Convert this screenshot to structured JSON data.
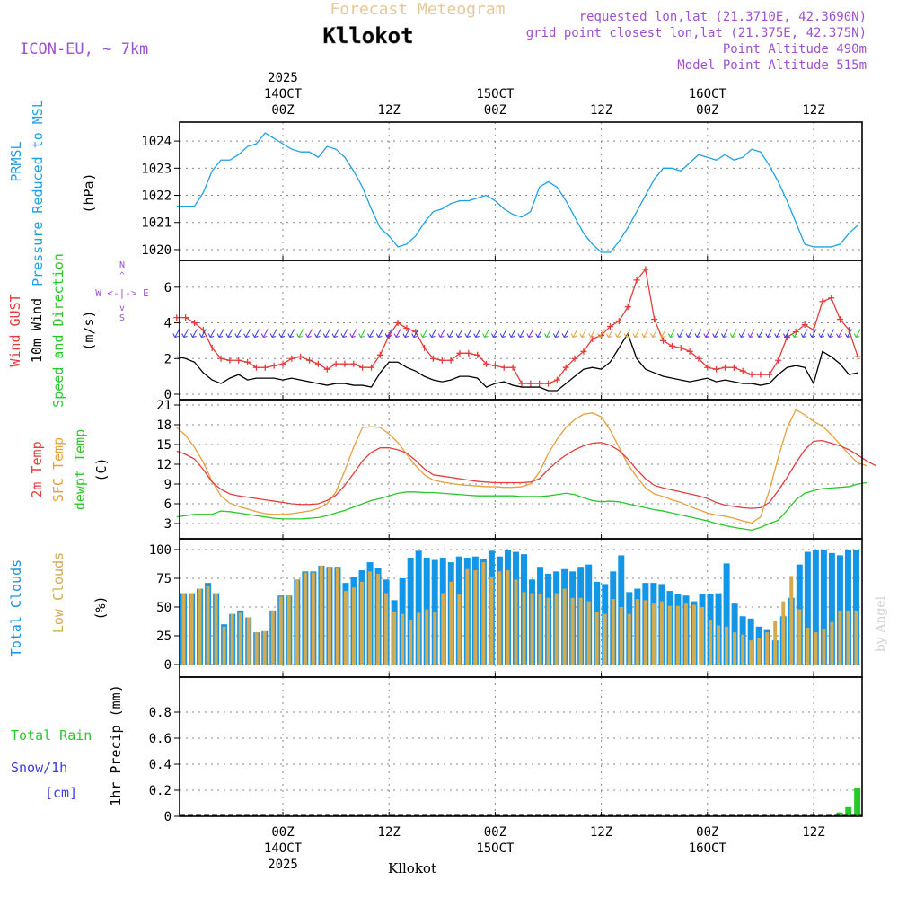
{
  "header": {
    "product": "Forecast Meteogram",
    "model": "ICON-EU, ~ 7km",
    "location": "Kllokot",
    "requested": "requested lon,lat (21.3710E, 42.3690N)",
    "grid_point": "grid point closest lon,lat (21.375E, 42.375N)",
    "point_alt": "Point Altitude 490m",
    "model_alt": "Model Point Altitude 515m",
    "credit": "by Angel",
    "footer_location": "Kllokot"
  },
  "time_axis": {
    "top_labels": [
      {
        "t": 12,
        "lines": [
          "2025",
          "14OCT",
          "00Z"
        ]
      },
      {
        "t": 24,
        "lines": [
          "12Z"
        ]
      },
      {
        "t": 36,
        "lines": [
          "15OCT",
          "00Z"
        ]
      },
      {
        "t": 48,
        "lines": [
          "12Z"
        ]
      },
      {
        "t": 60,
        "lines": [
          "16OCT",
          "00Z"
        ]
      },
      {
        "t": 72,
        "lines": [
          "12Z"
        ]
      }
    ],
    "bottom_labels": [
      {
        "t": 12,
        "lines": [
          "00Z",
          "14OCT",
          "2025"
        ]
      },
      {
        "t": 24,
        "lines": [
          "12Z"
        ]
      },
      {
        "t": 36,
        "lines": [
          "00Z",
          "15OCT"
        ]
      },
      {
        "t": 48,
        "lines": [
          "12Z"
        ]
      },
      {
        "t": 60,
        "lines": [
          "00Z",
          "16OCT"
        ]
      },
      {
        "t": 72,
        "lines": [
          "12Z"
        ]
      }
    ]
  },
  "panel_labels": {
    "pressure": {
      "line1": "PRMSL",
      "line2": "Pressure Reduced to MSL",
      "unit": "(hPa)"
    },
    "wind": {
      "gust": "Wind GUST",
      "wind10": "10m Wind",
      "dir": "Speed and Direction",
      "unit": "(m/s)",
      "compass_h": "W <-|-> E",
      "compass_n": "N",
      "compass_s": "S",
      "compass_arrow_up": "^",
      "compass_arrow_down": "v"
    },
    "temp": {
      "t2m": "2m Temp",
      "sfc": "SFC Temp",
      "dewpt": "dewpt Temp",
      "unit": "(C)"
    },
    "clouds": {
      "total": "Total Clouds",
      "low": "Low Clouds",
      "unit": "(%)"
    },
    "precip": {
      "rain": "Total  Rain",
      "snow": "Snow/1h",
      "snow_unit": "[cm]",
      "axis": "1hr Precip (mm)"
    }
  },
  "colors": {
    "pressure": "#1ea0e6",
    "gust": "#e63c3c",
    "wind": "#000000",
    "t2m": "#e63c3c",
    "sfc": "#e6a03c",
    "dewpt": "#28c828",
    "total_cloud": "#1496e6",
    "low_cloud": "#d2aa50",
    "rain": "#28c828",
    "snow": "#3c3ce6",
    "header": "#a050d2",
    "product": "#e6c896",
    "credit": "#d2d2d2"
  },
  "chart_data": [
    {
      "type": "line",
      "title": "PRMSL Pressure Reduced to MSL",
      "ylabel": "(hPa)",
      "ylim": [
        1019.8,
        1024.5
      ],
      "yticks": [
        1020,
        1021,
        1022,
        1023,
        1024
      ],
      "series": [
        {
          "name": "PRMSL",
          "values": [
            1021.6,
            1021.6,
            1021.6,
            1022.1,
            1022.9,
            1023.3,
            1023.3,
            1023.5,
            1023.8,
            1023.9,
            1024.3,
            1024.1,
            1023.9,
            1023.7,
            1023.6,
            1023.6,
            1023.4,
            1023.8,
            1023.7,
            1023.4,
            1022.9,
            1022.3,
            1021.5,
            1020.8,
            1020.5,
            1020.1,
            1020.2,
            1020.5,
            1021.0,
            1021.4,
            1021.5,
            1021.7,
            1021.8,
            1021.8,
            1021.9,
            1022.0,
            1021.8,
            1021.5,
            1021.3,
            1021.2,
            1021.4,
            1022.3,
            1022.5,
            1022.3,
            1021.8,
            1021.2,
            1020.6,
            1020.2,
            1019.9,
            1019.9,
            1020.3,
            1020.8,
            1021.4,
            1022.0,
            1022.6,
            1023.0,
            1023.0,
            1022.9,
            1023.2,
            1023.5,
            1023.4,
            1023.3,
            1023.5,
            1023.3,
            1023.4,
            1023.7,
            1023.6,
            1023.1,
            1022.5,
            1021.8,
            1021.0,
            1020.2,
            1020.1,
            1020.1,
            1020.1,
            1020.2,
            1020.6,
            1020.9
          ]
        }
      ]
    },
    {
      "type": "line",
      "title": "Wind GUST / 10m Wind Speed and Direction",
      "ylabel": "(m/s)",
      "ylim": [
        0,
        7.2
      ],
      "yticks": [
        0,
        2,
        4,
        6
      ],
      "series": [
        {
          "name": "Wind GUST",
          "values": [
            4.3,
            4.3,
            4.0,
            3.6,
            2.6,
            2.0,
            1.9,
            1.9,
            1.8,
            1.5,
            1.5,
            1.6,
            1.7,
            2.0,
            2.1,
            1.9,
            1.7,
            1.4,
            1.7,
            1.7,
            1.7,
            1.5,
            1.5,
            2.2,
            3.3,
            4.0,
            3.7,
            3.5,
            2.6,
            2.0,
            1.9,
            1.9,
            2.3,
            2.3,
            2.2,
            1.7,
            1.6,
            1.5,
            1.5,
            0.6,
            0.6,
            0.6,
            0.6,
            0.8,
            1.5,
            2.0,
            2.4,
            3.1,
            3.3,
            3.8,
            4.1,
            4.9,
            6.4,
            7.0,
            4.2,
            3.0,
            2.7,
            2.6,
            2.4,
            2.0,
            1.5,
            1.4,
            1.5,
            1.5,
            1.3,
            1.1,
            1.1,
            1.1,
            1.9,
            3.2,
            3.5,
            3.9,
            3.6,
            5.2,
            5.4,
            4.2,
            3.6,
            2.1
          ]
        },
        {
          "name": "10m Wind",
          "values": [
            2.1,
            2.0,
            1.8,
            1.2,
            0.8,
            0.6,
            0.9,
            1.1,
            0.8,
            0.9,
            0.9,
            0.9,
            0.8,
            0.9,
            0.8,
            0.7,
            0.6,
            0.5,
            0.6,
            0.6,
            0.5,
            0.5,
            0.4,
            1.2,
            1.8,
            1.8,
            1.5,
            1.3,
            1.0,
            0.8,
            0.7,
            0.8,
            1.0,
            1.0,
            0.9,
            0.4,
            0.6,
            0.7,
            0.5,
            0.4,
            0.4,
            0.4,
            0.2,
            0.2,
            0.6,
            1.0,
            1.4,
            1.5,
            1.4,
            1.8,
            2.6,
            3.4,
            2.0,
            1.4,
            1.2,
            1.0,
            0.9,
            0.8,
            0.7,
            0.8,
            0.9,
            0.7,
            0.8,
            0.7,
            0.6,
            0.6,
            0.5,
            0.6,
            1.1,
            1.5,
            1.6,
            1.5,
            0.6,
            2.4,
            2.1,
            1.7,
            1.1,
            1.2
          ]
        }
      ]
    },
    {
      "type": "line",
      "title": "2m Temp / SFC Temp / dewpt Temp",
      "ylabel": "(C)",
      "ylim": [
        1.5,
        21
      ],
      "yticks": [
        3,
        6,
        9,
        12,
        15,
        18,
        21
      ],
      "series": [
        {
          "name": "2m Temp",
          "values": [
            14.0,
            13.5,
            12.8,
            11.2,
            9.3,
            8.2,
            7.5,
            7.2,
            7.0,
            6.8,
            6.6,
            6.4,
            6.2,
            6.0,
            5.9,
            5.9,
            6.0,
            6.5,
            7.3,
            8.8,
            10.6,
            12.5,
            13.8,
            14.5,
            14.5,
            14.2,
            13.7,
            12.6,
            11.3,
            10.4,
            10.2,
            10.0,
            9.8,
            9.6,
            9.4,
            9.3,
            9.2,
            9.2,
            9.2,
            9.2,
            9.3,
            9.8,
            11.2,
            12.4,
            13.4,
            14.2,
            14.8,
            15.2,
            15.3,
            14.9,
            14.1,
            12.8,
            11.2,
            9.8,
            8.8,
            8.4,
            8.1,
            7.8,
            7.5,
            7.2,
            6.8,
            6.2,
            5.8,
            5.6,
            5.4,
            5.3,
            5.4,
            6.2,
            8.0,
            10.0,
            12.2,
            14.2,
            15.5,
            15.6,
            15.2,
            14.8,
            14.2,
            13.4,
            12.5,
            11.8
          ]
        },
        {
          "name": "SFC Temp",
          "values": [
            17.6,
            16.4,
            14.6,
            12.3,
            9.4,
            7.2,
            6.1,
            5.6,
            5.2,
            4.8,
            4.5,
            4.4,
            4.4,
            4.5,
            4.7,
            4.9,
            5.3,
            6.0,
            7.8,
            11.0,
            14.6,
            17.6,
            17.7,
            17.6,
            16.6,
            15.3,
            13.5,
            11.8,
            10.4,
            9.6,
            9.3,
            9.1,
            8.9,
            8.8,
            8.7,
            8.6,
            8.6,
            8.5,
            8.5,
            8.6,
            9.0,
            10.8,
            13.6,
            15.8,
            17.6,
            18.8,
            19.6,
            19.8,
            19.2,
            17.2,
            14.6,
            12.0,
            10.1,
            8.4,
            7.5,
            7.1,
            6.6,
            6.2,
            5.6,
            5.1,
            4.6,
            4.3,
            4.1,
            3.8,
            3.4,
            3.1,
            4.0,
            8.0,
            13.0,
            17.5,
            20.3,
            19.5,
            18.5,
            17.8,
            16.5,
            15.0,
            13.5,
            12.2,
            11.8
          ]
        },
        {
          "name": "dewpt Temp",
          "values": [
            4.0,
            4.2,
            4.4,
            4.4,
            4.4,
            4.9,
            4.8,
            4.6,
            4.4,
            4.2,
            4.0,
            3.8,
            3.7,
            3.7,
            3.7,
            3.8,
            3.9,
            4.2,
            4.6,
            5.0,
            5.5,
            6.0,
            6.5,
            6.8,
            7.2,
            7.6,
            7.8,
            7.8,
            7.7,
            7.7,
            7.6,
            7.5,
            7.4,
            7.3,
            7.2,
            7.2,
            7.2,
            7.2,
            7.2,
            7.1,
            7.1,
            7.1,
            7.2,
            7.4,
            7.6,
            7.4,
            6.9,
            6.5,
            6.3,
            6.4,
            6.3,
            6.0,
            5.7,
            5.4,
            5.1,
            4.9,
            4.6,
            4.3,
            4.0,
            3.7,
            3.4,
            3.0,
            2.7,
            2.4,
            2.2,
            2.0,
            2.4,
            3.0,
            3.5,
            5.0,
            6.6,
            7.6,
            8.0,
            8.3,
            8.4,
            8.5,
            8.6,
            9.0,
            9.2
          ]
        }
      ]
    },
    {
      "type": "bar",
      "title": "Total Clouds / Low Clouds",
      "ylabel": "(%)",
      "ylim": [
        0,
        100
      ],
      "yticks": [
        0,
        25,
        50,
        75,
        100
      ],
      "series": [
        {
          "name": "Total Clouds",
          "values": [
            62,
            62,
            66,
            71,
            62,
            35,
            44,
            47,
            41,
            28,
            29,
            47,
            60,
            60,
            74,
            81,
            81,
            86,
            85,
            85,
            71,
            76,
            82,
            89,
            84,
            74,
            56,
            75,
            93,
            99,
            93,
            91,
            93,
            89,
            94,
            93,
            94,
            92,
            99,
            94,
            100,
            98,
            96,
            74,
            85,
            79,
            81,
            83,
            81,
            85,
            87,
            72,
            70,
            81,
            95,
            63,
            66,
            71,
            71,
            70,
            64,
            61,
            60,
            55,
            61,
            61,
            62,
            88,
            53,
            42,
            40,
            33,
            30,
            21,
            42,
            58,
            87,
            98,
            100,
            100,
            97,
            95,
            100,
            100
          ]
        },
        {
          "name": "Low Clouds",
          "values": [
            62,
            62,
            66,
            68,
            62,
            33,
            44,
            45,
            41,
            28,
            29,
            47,
            59,
            60,
            74,
            80,
            80,
            86,
            85,
            84,
            64,
            67,
            72,
            81,
            79,
            62,
            46,
            44,
            39,
            45,
            48,
            46,
            62,
            72,
            61,
            83,
            82,
            89,
            76,
            81,
            82,
            74,
            63,
            62,
            61,
            58,
            62,
            66,
            58,
            58,
            55,
            46,
            44,
            57,
            50,
            44,
            57,
            56,
            53,
            55,
            51,
            51,
            53,
            52,
            50,
            39,
            34,
            33,
            28,
            26,
            21,
            23,
            28,
            38,
            55,
            77,
            48,
            32,
            28,
            31,
            37,
            47,
            47,
            47
          ]
        }
      ]
    },
    {
      "type": "bar",
      "title": "1hr Precip (mm)",
      "ylabel": "1hr Precip (mm)",
      "ylim": [
        0,
        1.0
      ],
      "yticks": [
        0,
        0.2,
        0.4,
        0.6,
        0.8
      ],
      "series": [
        {
          "name": "Total Rain",
          "values": [
            0,
            0,
            0,
            0,
            0,
            0,
            0,
            0,
            0,
            0,
            0,
            0,
            0,
            0,
            0,
            0,
            0,
            0,
            0,
            0,
            0,
            0,
            0,
            0,
            0,
            0,
            0,
            0,
            0,
            0,
            0,
            0,
            0,
            0,
            0,
            0,
            0,
            0,
            0,
            0,
            0,
            0,
            0,
            0,
            0,
            0,
            0,
            0,
            0,
            0,
            0,
            0,
            0,
            0,
            0,
            0,
            0,
            0,
            0,
            0,
            0,
            0,
            0,
            0,
            0,
            0,
            0,
            0,
            0,
            0,
            0,
            0,
            0,
            0,
            0,
            0,
            0,
            0,
            0.03,
            0.07,
            0.22
          ]
        },
        {
          "name": "Snow/1h",
          "values": [
            0,
            0,
            0,
            0,
            0,
            0,
            0,
            0,
            0,
            0,
            0,
            0,
            0,
            0,
            0,
            0,
            0,
            0,
            0,
            0,
            0,
            0,
            0,
            0,
            0,
            0,
            0,
            0,
            0,
            0,
            0,
            0,
            0,
            0,
            0,
            0,
            0,
            0,
            0,
            0,
            0,
            0,
            0,
            0,
            0,
            0,
            0,
            0,
            0,
            0,
            0,
            0,
            0,
            0,
            0,
            0,
            0,
            0,
            0,
            0,
            0,
            0,
            0,
            0,
            0,
            0,
            0,
            0,
            0,
            0,
            0,
            0,
            0,
            0,
            0,
            0,
            0,
            0,
            0,
            0,
            0
          ]
        }
      ]
    }
  ]
}
